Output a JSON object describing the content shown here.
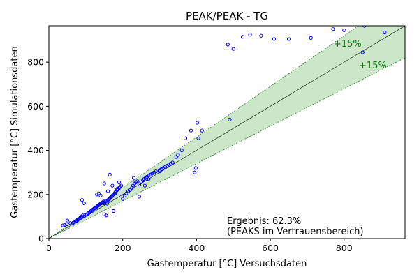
{
  "chart_data": {
    "type": "scatter",
    "title": "PEAK/PEAK - TG",
    "xlabel": "Gastemperatur [°C] Versuchsdaten",
    "ylabel": "Gastemperatur [°C] Simulationsdaten",
    "xlim": [
      0,
      965
    ],
    "ylim": [
      0,
      965
    ],
    "xticks": [
      0,
      200,
      400,
      600,
      800
    ],
    "yticks": [
      0,
      200,
      400,
      600,
      800
    ],
    "grid": false,
    "tolerance": 0.15,
    "band_labels": [
      "+15%",
      "+15%"
    ],
    "annotation": [
      "Ergebnis: 62.3%",
      "(PEAKS im Vertrauensbereich)"
    ],
    "colors": {
      "points": "#0000ff",
      "band_fill": "#cbe6c9",
      "band_edge": "#2e8b2e",
      "band_label": "#008000",
      "reference_line": "#000000"
    },
    "series": [
      {
        "x": [
          38,
          43,
          48,
          50,
          58,
          63,
          66,
          70,
          73,
          76,
          78,
          80,
          83,
          85,
          87,
          90,
          92,
          95,
          100,
          103,
          106,
          110,
          112,
          114,
          116,
          118,
          120,
          122,
          124,
          126,
          128,
          130,
          132,
          134,
          136,
          138,
          140,
          142,
          144,
          146,
          148,
          150,
          152,
          154,
          156,
          158,
          160,
          162,
          164,
          166,
          168,
          170,
          172,
          175,
          178,
          180,
          182,
          185,
          188,
          190,
          193,
          196,
          200,
          205,
          210,
          215,
          220,
          225,
          228,
          232,
          236,
          240,
          245,
          250,
          255,
          258,
          262,
          266,
          270,
          275,
          280,
          285,
          290,
          300,
          305,
          310,
          315,
          320,
          325,
          330,
          335,
          345,
          350,
          360,
          370,
          385,
          395,
          398,
          402,
          405,
          415,
          90,
          95,
          130,
          135,
          150,
          155,
          165,
          175,
          180,
          185,
          140,
          150,
          160,
          172,
          190,
          245,
          260,
          230,
          270,
          300,
          490,
          500,
          485,
          525,
          545,
          575,
          610,
          650,
          710,
          770,
          800,
          850,
          855,
          910
        ],
        "y": [
          60,
          62,
          65,
          82,
          70,
          68,
          72,
          75,
          78,
          80,
          85,
          88,
          90,
          95,
          100,
          98,
          105,
          100,
          108,
          110,
          115,
          118,
          120,
          125,
          128,
          130,
          132,
          135,
          138,
          140,
          142,
          145,
          148,
          150,
          152,
          155,
          158,
          160,
          162,
          165,
          168,
          160,
          165,
          170,
          172,
          158,
          175,
          178,
          180,
          185,
          188,
          190,
          195,
          200,
          205,
          210,
          215,
          220,
          225,
          230,
          235,
          240,
          180,
          195,
          205,
          215,
          220,
          230,
          240,
          250,
          255,
          260,
          245,
          255,
          265,
          270,
          275,
          280,
          285,
          290,
          295,
          300,
          305,
          310,
          315,
          320,
          325,
          330,
          335,
          340,
          345,
          370,
          380,
          400,
          455,
          490,
          300,
          320,
          525,
          455,
          490,
          175,
          160,
          200,
          205,
          250,
          105,
          290,
          125,
          205,
          225,
          195,
          110,
          215,
          240,
          255,
          190,
          240,
          275,
          270,
          305,
          540,
          860,
          880,
          915,
          925,
          920,
          905,
          905,
          910,
          950,
          945,
          845,
          965,
          935
        ]
      }
    ]
  }
}
